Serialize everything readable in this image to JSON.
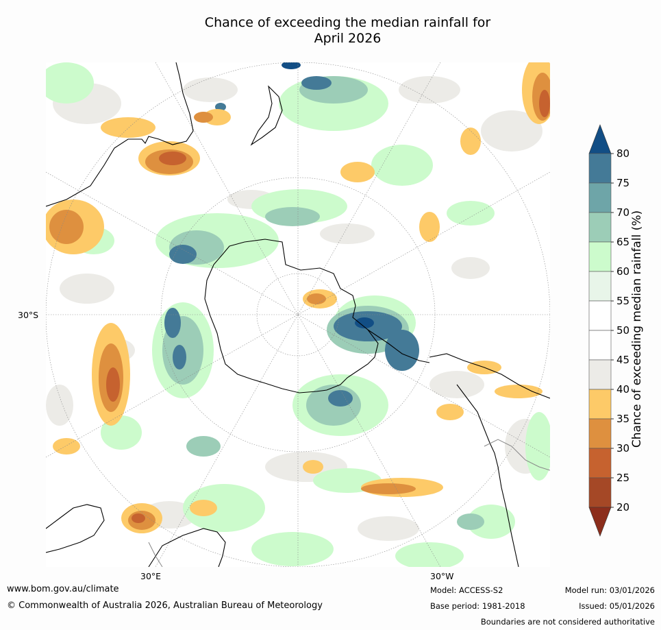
{
  "title_line1": "Chance of exceeding the median rainfall for",
  "title_line2": "April 2026",
  "map_labels": {
    "lon_30e": "30°E",
    "lon_30w": "30°W",
    "lat_30s": "30°S"
  },
  "colorbar": {
    "title": "Chance of exceeding median rainfall (%)",
    "ticks": [
      "80",
      "75",
      "70",
      "65",
      "60",
      "55",
      "50",
      "45",
      "40",
      "35",
      "30",
      "25",
      "20"
    ],
    "colors": [
      "#124e85",
      "#447a97",
      "#6ea5a8",
      "#9ccdb7",
      "#ccfbcc",
      "#e8f5e9",
      "#ffffff",
      "#ffffff",
      "#ecebe7",
      "#fdca68",
      "#de903f",
      "#c6622f",
      "#a54826",
      "#8c2e1c"
    ]
  },
  "footer": {
    "website": "www.bom.gov.au/climate",
    "copyright": "© Commonwealth of Australia 2026, Australian Bureau of Meteorology",
    "model": "Model: ACCESS-S2",
    "base_period": "Base period: 1981-2018",
    "model_run": "Model run: 03/01/2026",
    "issued": "Issued: 05/01/2026",
    "disclaimer": "Boundaries are not considered authoritative"
  }
}
